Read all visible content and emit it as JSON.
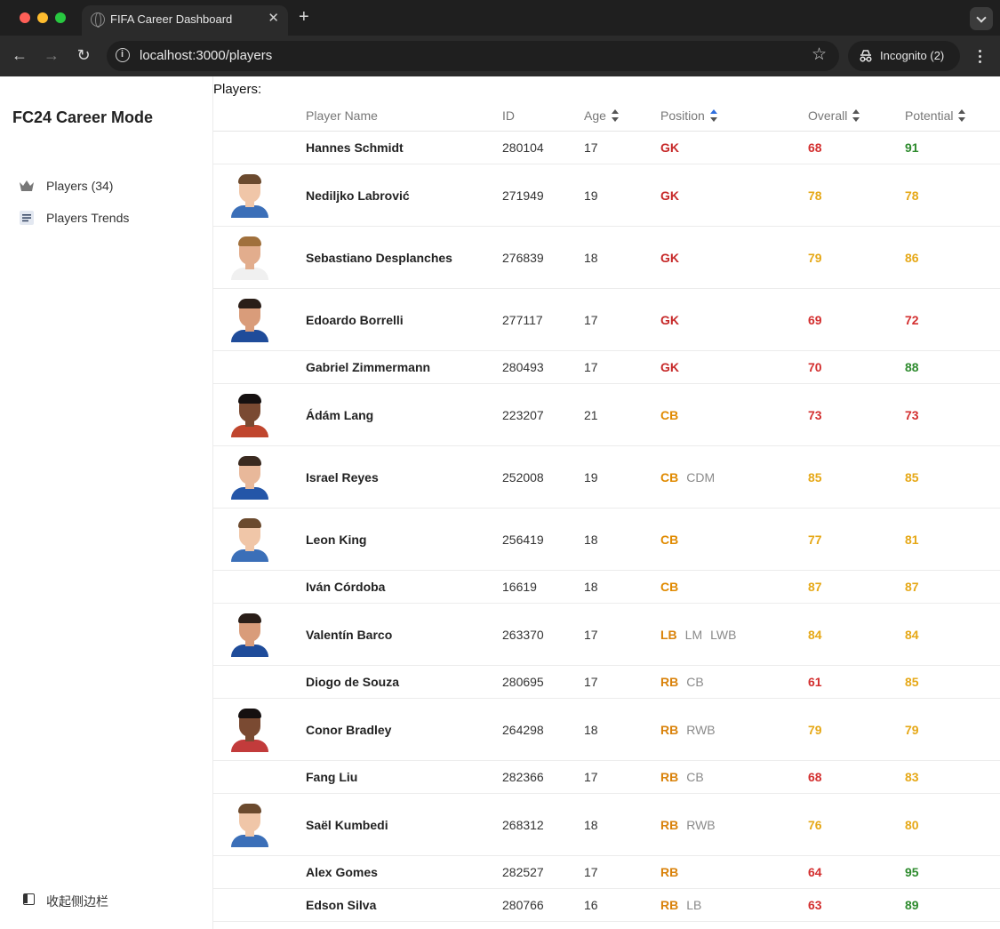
{
  "browser": {
    "tab_title": "FIFA Career Dashboard",
    "url": "localhost:3000/players",
    "incognito_label": "Incognito (2)",
    "icons": [
      "globe-icon",
      "close-icon",
      "plus-icon",
      "chevron-down-icon",
      "back-icon",
      "forward-icon",
      "reload-icon",
      "info-icon",
      "star-icon",
      "incognito-icon",
      "kebab-menu-icon"
    ]
  },
  "sidebar": {
    "title": "FC24 Career Mode",
    "items": [
      {
        "label": "Players (34)",
        "icon": "crown-icon"
      },
      {
        "label": "Players Trends",
        "icon": "list-icon"
      }
    ],
    "collapse_label": "收起侧边栏",
    "collapse_icon": "sidebar-icon"
  },
  "main": {
    "heading": "Players:",
    "columns": {
      "name": "Player Name",
      "id": "ID",
      "age": "Age",
      "position": "Position",
      "overall": "Overall",
      "potential": "Potential"
    },
    "sort": {
      "column": "Position",
      "direction": "ascending"
    },
    "colors": {
      "gk": "#c62828",
      "cb": "#e08a00",
      "fullback": "#d9820a",
      "rating_red": "#d32f2f",
      "rating_yellow": "#e6a817",
      "rating_green": "#2e8b2e",
      "alt_position": "#8a8a8a"
    },
    "rows": [
      {
        "name": "Hannes Schmidt",
        "id": "280104",
        "age": "17",
        "pos": "GK",
        "alt": [],
        "overall": "68",
        "potential": "91",
        "photo": false
      },
      {
        "name": "Nediljko Labrović",
        "id": "271949",
        "age": "19",
        "pos": "GK",
        "alt": [],
        "overall": "78",
        "potential": "78",
        "photo": true
      },
      {
        "name": "Sebastiano Desplanches",
        "id": "276839",
        "age": "18",
        "pos": "GK",
        "alt": [],
        "overall": "79",
        "potential": "86",
        "photo": true
      },
      {
        "name": "Edoardo Borrelli",
        "id": "277117",
        "age": "17",
        "pos": "GK",
        "alt": [],
        "overall": "69",
        "potential": "72",
        "photo": true
      },
      {
        "name": "Gabriel Zimmermann",
        "id": "280493",
        "age": "17",
        "pos": "GK",
        "alt": [],
        "overall": "70",
        "potential": "88",
        "photo": false
      },
      {
        "name": "Ádám Lang",
        "id": "223207",
        "age": "21",
        "pos": "CB",
        "alt": [],
        "overall": "73",
        "potential": "73",
        "photo": true
      },
      {
        "name": "Israel Reyes",
        "id": "252008",
        "age": "19",
        "pos": "CB",
        "alt": [
          "CDM"
        ],
        "overall": "85",
        "potential": "85",
        "photo": true
      },
      {
        "name": "Leon King",
        "id": "256419",
        "age": "18",
        "pos": "CB",
        "alt": [],
        "overall": "77",
        "potential": "81",
        "photo": true
      },
      {
        "name": "Iván Córdoba",
        "id": "16619",
        "age": "18",
        "pos": "CB",
        "alt": [],
        "overall": "87",
        "potential": "87",
        "photo": false
      },
      {
        "name": "Valentín Barco",
        "id": "263370",
        "age": "17",
        "pos": "LB",
        "alt": [
          "LM",
          "LWB"
        ],
        "overall": "84",
        "potential": "84",
        "photo": true
      },
      {
        "name": "Diogo de Souza",
        "id": "280695",
        "age": "17",
        "pos": "RB",
        "alt": [
          "CB"
        ],
        "overall": "61",
        "potential": "85",
        "photo": false
      },
      {
        "name": "Conor Bradley",
        "id": "264298",
        "age": "18",
        "pos": "RB",
        "alt": [
          "RWB"
        ],
        "overall": "79",
        "potential": "79",
        "photo": true
      },
      {
        "name": "Fang Liu",
        "id": "282366",
        "age": "17",
        "pos": "RB",
        "alt": [
          "CB"
        ],
        "overall": "68",
        "potential": "83",
        "photo": false
      },
      {
        "name": "Saël Kumbedi",
        "id": "268312",
        "age": "18",
        "pos": "RB",
        "alt": [
          "RWB"
        ],
        "overall": "76",
        "potential": "80",
        "photo": true
      },
      {
        "name": "Alex Gomes",
        "id": "282527",
        "age": "17",
        "pos": "RB",
        "alt": [],
        "overall": "64",
        "potential": "95",
        "photo": false
      },
      {
        "name": "Edson Silva",
        "id": "280766",
        "age": "16",
        "pos": "RB",
        "alt": [
          "LB"
        ],
        "overall": "63",
        "potential": "89",
        "photo": false
      }
    ]
  }
}
